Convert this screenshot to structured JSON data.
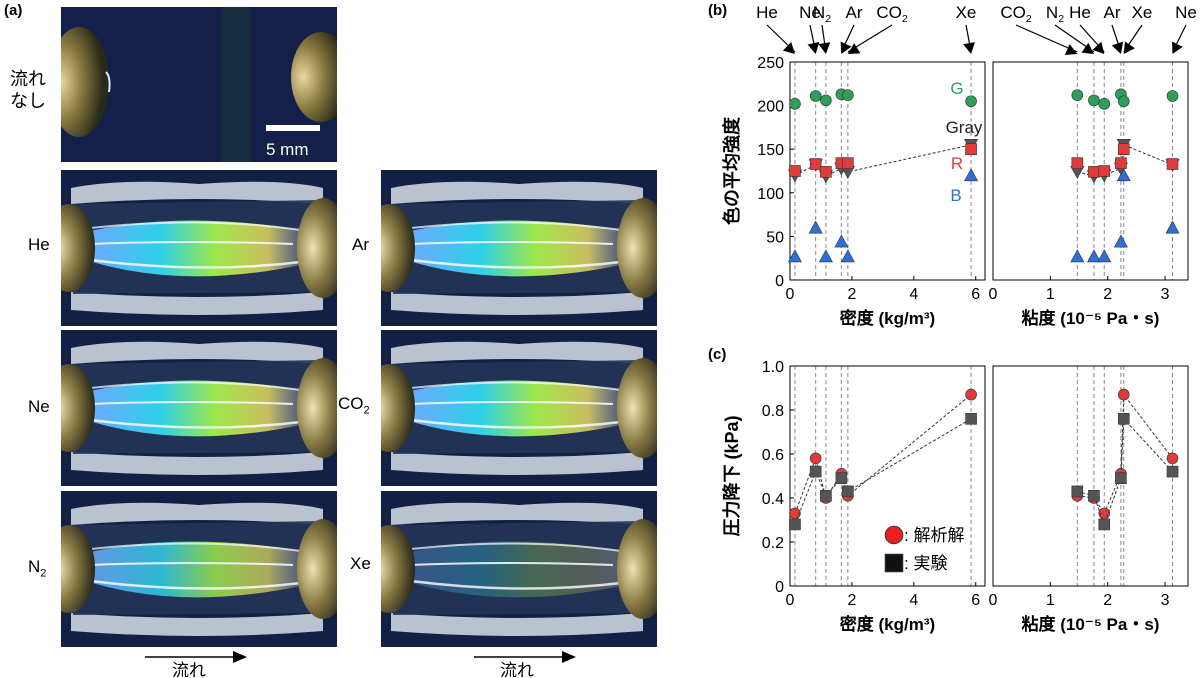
{
  "panel_a": {
    "label": "(a)",
    "no_flow_label": [
      "流れ",
      "なし"
    ],
    "scale_bar_label": "5 mm",
    "flow_label": "流れ",
    "photos": [
      {
        "gas": "He"
      },
      {
        "gas": "Ar"
      },
      {
        "gas": "Ne"
      },
      {
        "gas": "CO",
        "sub": "2"
      },
      {
        "gas": "N",
        "sub": "2"
      },
      {
        "gas": "Xe"
      }
    ]
  },
  "panel_b": {
    "label": "(b)"
  },
  "panel_c": {
    "label": "(c)"
  },
  "chart_data": [
    {
      "id": "b-density",
      "type": "scatter",
      "xlabel": "密度 (kg/m³)",
      "ylabel": "色の平均強度",
      "xlim": [
        0,
        6.3
      ],
      "ylim": [
        0,
        250
      ],
      "xticks": [
        0,
        2,
        4,
        6
      ],
      "yticks": [
        0,
        50,
        100,
        150,
        200,
        250
      ],
      "vlines": [
        0.16,
        0.83,
        1.16,
        1.66,
        1.87,
        5.85
      ],
      "top_labels": [
        {
          "text": "He",
          "x": 0.16
        },
        {
          "text": "Ne",
          "x": 0.83
        },
        {
          "text": "N",
          "sub": "2",
          "x": 1.16
        },
        {
          "text": "Ar",
          "x": 1.66
        },
        {
          "text": "CO",
          "sub": "2",
          "x": 1.87
        },
        {
          "text": "Xe",
          "x": 5.85
        }
      ],
      "series": [
        {
          "name": "G",
          "color": "#2ca05a",
          "marker": "circle",
          "x": [
            0.16,
            0.83,
            1.16,
            1.66,
            1.87,
            5.85
          ],
          "y": [
            202,
            211,
            206,
            213,
            212,
            205
          ]
        },
        {
          "name": "Gray",
          "color": "#555555",
          "marker": "triangle-down",
          "line": true,
          "x": [
            0.16,
            0.83,
            1.16,
            1.66,
            1.87,
            5.85
          ],
          "y": [
            120,
            132,
            119,
            128,
            124,
            155
          ]
        },
        {
          "name": "R",
          "color": "#e03a3a",
          "marker": "square",
          "x": [
            0.16,
            0.83,
            1.16,
            1.66,
            1.87,
            5.85
          ],
          "y": [
            125,
            133,
            124,
            134,
            134,
            150
          ]
        },
        {
          "name": "B",
          "color": "#2d6fd8",
          "marker": "triangle-up",
          "x": [
            0.16,
            0.83,
            1.16,
            1.66,
            1.87,
            5.85
          ],
          "y": [
            27,
            60,
            27,
            44,
            27,
            120
          ]
        }
      ],
      "series_labels": [
        {
          "text": "G",
          "color": "#2ca05a"
        },
        {
          "text": "Gray",
          "color": "#222222"
        },
        {
          "text": "R",
          "color": "#e03a3a"
        },
        {
          "text": "B",
          "color": "#2d6fd8"
        }
      ]
    },
    {
      "id": "b-viscosity",
      "type": "scatter",
      "xlabel": "粘度 (10⁻⁵ Pa・s)",
      "ylabel": "",
      "xlim": [
        0,
        3.4
      ],
      "ylim": [
        0,
        250
      ],
      "xticks": [
        0,
        1,
        2,
        3
      ],
      "vlines": [
        1.47,
        1.76,
        1.94,
        2.23,
        2.28,
        3.13
      ],
      "top_labels": [
        {
          "text": "CO",
          "sub": "2",
          "x": 1.47
        },
        {
          "text": "N",
          "sub": "2",
          "x": 1.76
        },
        {
          "text": "He",
          "x": 1.94
        },
        {
          "text": "Ar",
          "x": 2.23
        },
        {
          "text": "Xe",
          "x": 2.28
        },
        {
          "text": "Ne",
          "x": 3.13
        }
      ],
      "series": [
        {
          "name": "G",
          "color": "#2ca05a",
          "marker": "circle",
          "x": [
            1.47,
            1.76,
            1.94,
            2.23,
            2.28,
            3.13
          ],
          "y": [
            212,
            206,
            202,
            213,
            205,
            211
          ]
        },
        {
          "name": "Gray",
          "color": "#555555",
          "marker": "triangle-down",
          "line": true,
          "x": [
            1.47,
            1.76,
            1.94,
            2.23,
            2.28,
            3.13
          ],
          "y": [
            124,
            119,
            120,
            128,
            155,
            132
          ]
        },
        {
          "name": "R",
          "color": "#e03a3a",
          "marker": "square",
          "x": [
            1.47,
            1.76,
            1.94,
            2.23,
            2.28,
            3.13
          ],
          "y": [
            134,
            124,
            125,
            134,
            150,
            133
          ]
        },
        {
          "name": "B",
          "color": "#2d6fd8",
          "marker": "triangle-up",
          "x": [
            1.47,
            1.76,
            1.94,
            2.23,
            2.28,
            3.13
          ],
          "y": [
            27,
            27,
            27,
            44,
            120,
            60
          ]
        }
      ]
    },
    {
      "id": "c-density",
      "type": "scatter",
      "xlabel": "密度 (kg/m³)",
      "ylabel": "圧力降下 (kPa)",
      "xlim": [
        0,
        6.3
      ],
      "ylim": [
        0,
        1.0
      ],
      "xticks": [
        0,
        2,
        4,
        6
      ],
      "yticks": [
        0,
        0.2,
        0.4,
        0.6,
        0.8,
        1.0
      ],
      "vlines": [
        0.16,
        0.83,
        1.16,
        1.66,
        1.87,
        5.85
      ],
      "series": [
        {
          "name": "解析解",
          "color": "#e03a3a",
          "marker": "circle",
          "line": true,
          "x": [
            0.16,
            0.83,
            1.16,
            1.66,
            1.87,
            5.85
          ],
          "y": [
            0.33,
            0.58,
            0.4,
            0.51,
            0.41,
            0.87
          ]
        },
        {
          "name": "実験",
          "color": "#555555",
          "marker": "square",
          "line": true,
          "x": [
            0.16,
            0.83,
            1.16,
            1.66,
            1.87,
            5.85
          ],
          "y": [
            0.28,
            0.52,
            0.41,
            0.49,
            0.43,
            0.76
          ]
        }
      ],
      "legend": {
        "position": "bottom-right",
        "entries": [
          {
            "text": ": 解析解",
            "color": "#e03a3a",
            "marker": "circle"
          },
          {
            "text": ": 実験",
            "color": "#111111",
            "marker": "square"
          }
        ]
      }
    },
    {
      "id": "c-viscosity",
      "type": "scatter",
      "xlabel": "粘度 (10⁻⁵ Pa・s)",
      "ylabel": "",
      "xlim": [
        0,
        3.4
      ],
      "ylim": [
        0,
        1.0
      ],
      "xticks": [
        0,
        1,
        2,
        3
      ],
      "vlines": [
        1.47,
        1.76,
        1.94,
        2.23,
        2.28,
        3.13
      ],
      "series": [
        {
          "name": "解析解",
          "color": "#e03a3a",
          "marker": "circle",
          "line": true,
          "x": [
            1.47,
            1.76,
            1.94,
            2.23,
            2.28,
            3.13
          ],
          "y": [
            0.41,
            0.4,
            0.33,
            0.51,
            0.87,
            0.58
          ]
        },
        {
          "name": "実験",
          "color": "#555555",
          "marker": "square",
          "line": true,
          "x": [
            1.47,
            1.76,
            1.94,
            2.23,
            2.28,
            3.13
          ],
          "y": [
            0.43,
            0.41,
            0.28,
            0.49,
            0.76,
            0.52
          ]
        }
      ]
    }
  ]
}
